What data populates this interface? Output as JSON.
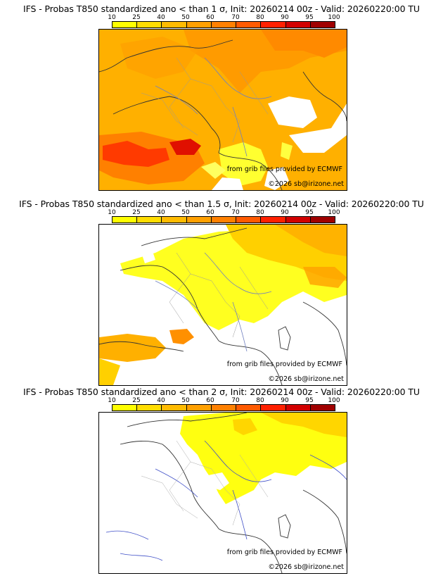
{
  "scale": {
    "ticks": [
      "10",
      "25",
      "40",
      "50",
      "60",
      "70",
      "80",
      "90",
      "95",
      "100"
    ],
    "colors": [
      "#ffff00",
      "#ffdd00",
      "#ffbb00",
      "#ffa000",
      "#ff8000",
      "#ff5a00",
      "#ff2000",
      "#d20000",
      "#a00000",
      "#6a0000"
    ]
  },
  "panels": [
    {
      "title": "IFS - Probas T850  standardized ano < than 1 σ, Init: 20260214 00z - Valid: 20260220:00 TU",
      "credit_grib": "from grib files provided by ECMWF",
      "credit_copy": "©2026 sb@irizone.net"
    },
    {
      "title": "IFS - Probas T850  standardized ano < than 1.5 σ, Init: 20260214 00z - Valid: 20260220:00 TU",
      "credit_grib": "from grib files provided by ECMWF",
      "credit_copy": "©2026 sb@irizone.net"
    },
    {
      "title": "IFS - Probas T850  standardized ano < than 2 σ, Init: 20260214 00z - Valid: 20260220:00 TU",
      "credit_grib": "from grib files provided by ECMWF",
      "credit_copy": "©2026 sb@irizone.net"
    }
  ]
}
